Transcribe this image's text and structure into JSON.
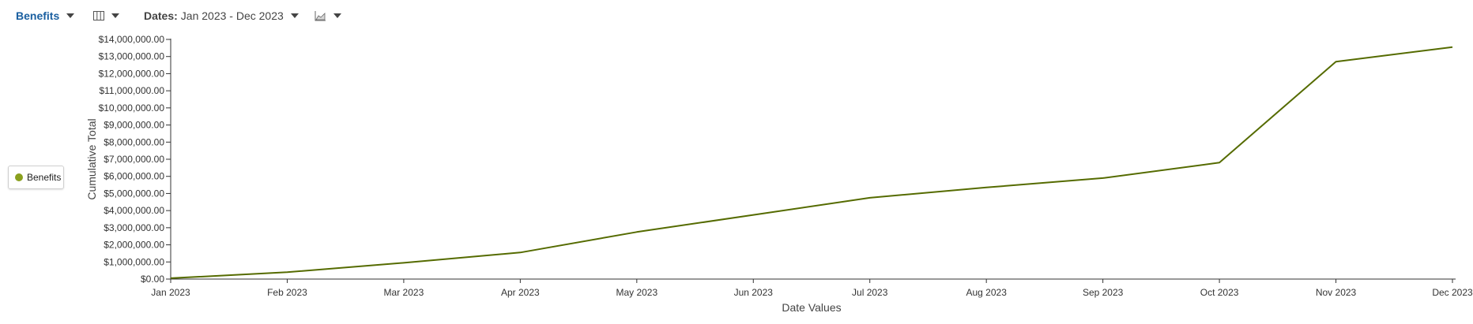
{
  "toolbar": {
    "measure_label": "Benefits",
    "dates_prefix": "Dates:",
    "dates_value": "Jan 2023 - Dec 2023",
    "columns_icon": "columns-icon",
    "chart_type_icon": "area-chart-icon"
  },
  "legend": {
    "label": "Benefits",
    "color": "#8aa01e"
  },
  "chart_data": {
    "type": "line",
    "categories": [
      "Jan 2023",
      "Feb 2023",
      "Mar 2023",
      "Apr 2023",
      "May 2023",
      "Jun 2023",
      "Jul 2023",
      "Aug 2023",
      "Sep 2023",
      "Oct 2023",
      "Nov 2023",
      "Dec 2023"
    ],
    "series": [
      {
        "name": "Benefits",
        "color": "#556b00",
        "values": [
          50000,
          400000,
          950000,
          1550000,
          2750000,
          3750000,
          4750000,
          5350000,
          5900000,
          6800000,
          12700000,
          13550000
        ]
      }
    ],
    "xlabel": "Date Values",
    "ylabel": "Cumulative Total",
    "ylim": [
      0,
      14000000
    ],
    "yticks": [
      "$0.00",
      "$1,000,000.00",
      "$2,000,000.00",
      "$3,000,000.00",
      "$4,000,000.00",
      "$5,000,000.00",
      "$6,000,000.00",
      "$7,000,000.00",
      "$8,000,000.00",
      "$9,000,000.00",
      "$10,000,000.00",
      "$11,000,000.00",
      "$12,000,000.00",
      "$13,000,000.00",
      "$14,000,000.00"
    ],
    "grid": false
  }
}
